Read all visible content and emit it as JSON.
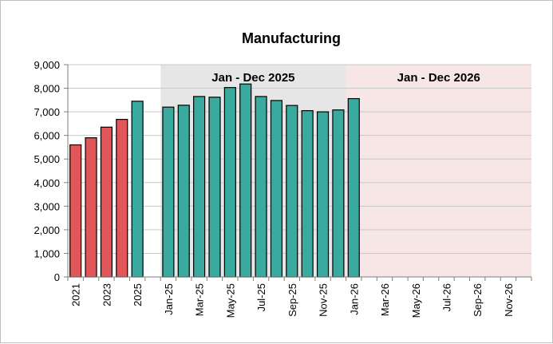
{
  "chart_data": {
    "type": "bar",
    "title": "Manufacturing",
    "xlabel": "",
    "ylabel": "",
    "ylim": [
      0,
      9000
    ],
    "y_ticks": [
      "0",
      "1,000",
      "2,000",
      "3,000",
      "4,000",
      "5,000",
      "6,000",
      "7,000",
      "8,000",
      "9,000"
    ],
    "grid": true,
    "legend": "none",
    "colors": {
      "annual": "#e05659",
      "monthly": "#3aaa9e",
      "bar_edge": "#000000",
      "band_2025": "#e6e6e6",
      "band_2026": "#f6e6e6",
      "grid": "#c9c9c9"
    },
    "bands": [
      {
        "label": "Jan - Dec 2025",
        "color": "#e6e6e6"
      },
      {
        "label": "Jan - Dec 2026",
        "color": "#f6e6e6"
      }
    ],
    "categories": [
      "2021",
      "2022",
      "2023",
      "2024",
      "2025",
      "",
      "Jan-25",
      "Feb-25",
      "Mar-25",
      "Apr-25",
      "May-25",
      "Jun-25",
      "Jul-25",
      "Aug-25",
      "Sep-25",
      "Oct-25",
      "Nov-25",
      "Dec-25",
      "Jan-26",
      "Feb-26",
      "Mar-26",
      "Apr-26",
      "May-26",
      "Jun-26",
      "Jul-26",
      "Aug-26",
      "Sep-26",
      "Oct-26",
      "Nov-26",
      "Dec-26"
    ],
    "tick_labels": [
      "2021",
      "",
      "2023",
      "",
      "2025",
      "",
      "Jan-25",
      "",
      "Mar-25",
      "",
      "May-25",
      "",
      "Jul-25",
      "",
      "Sep-25",
      "",
      "Nov-25",
      "",
      "Jan-26",
      "",
      "Mar-26",
      "",
      "May-26",
      "",
      "Jul-26",
      "",
      "Sep-26",
      "",
      "Nov-26",
      ""
    ],
    "values": [
      5600,
      5900,
      6350,
      6680,
      7450,
      null,
      7200,
      7280,
      7650,
      7620,
      8030,
      8180,
      7650,
      7480,
      7270,
      7050,
      7000,
      7080,
      7560,
      null,
      null,
      null,
      null,
      null,
      null,
      null,
      null,
      null,
      null,
      null
    ],
    "series_type": [
      "annual",
      "annual",
      "annual",
      "annual",
      "monthly",
      "gap",
      "monthly",
      "monthly",
      "monthly",
      "monthly",
      "monthly",
      "monthly",
      "monthly",
      "monthly",
      "monthly",
      "monthly",
      "monthly",
      "monthly",
      "monthly",
      "monthly",
      "monthly",
      "monthly",
      "monthly",
      "monthly",
      "monthly",
      "monthly",
      "monthly",
      "monthly",
      "monthly",
      "monthly"
    ]
  }
}
